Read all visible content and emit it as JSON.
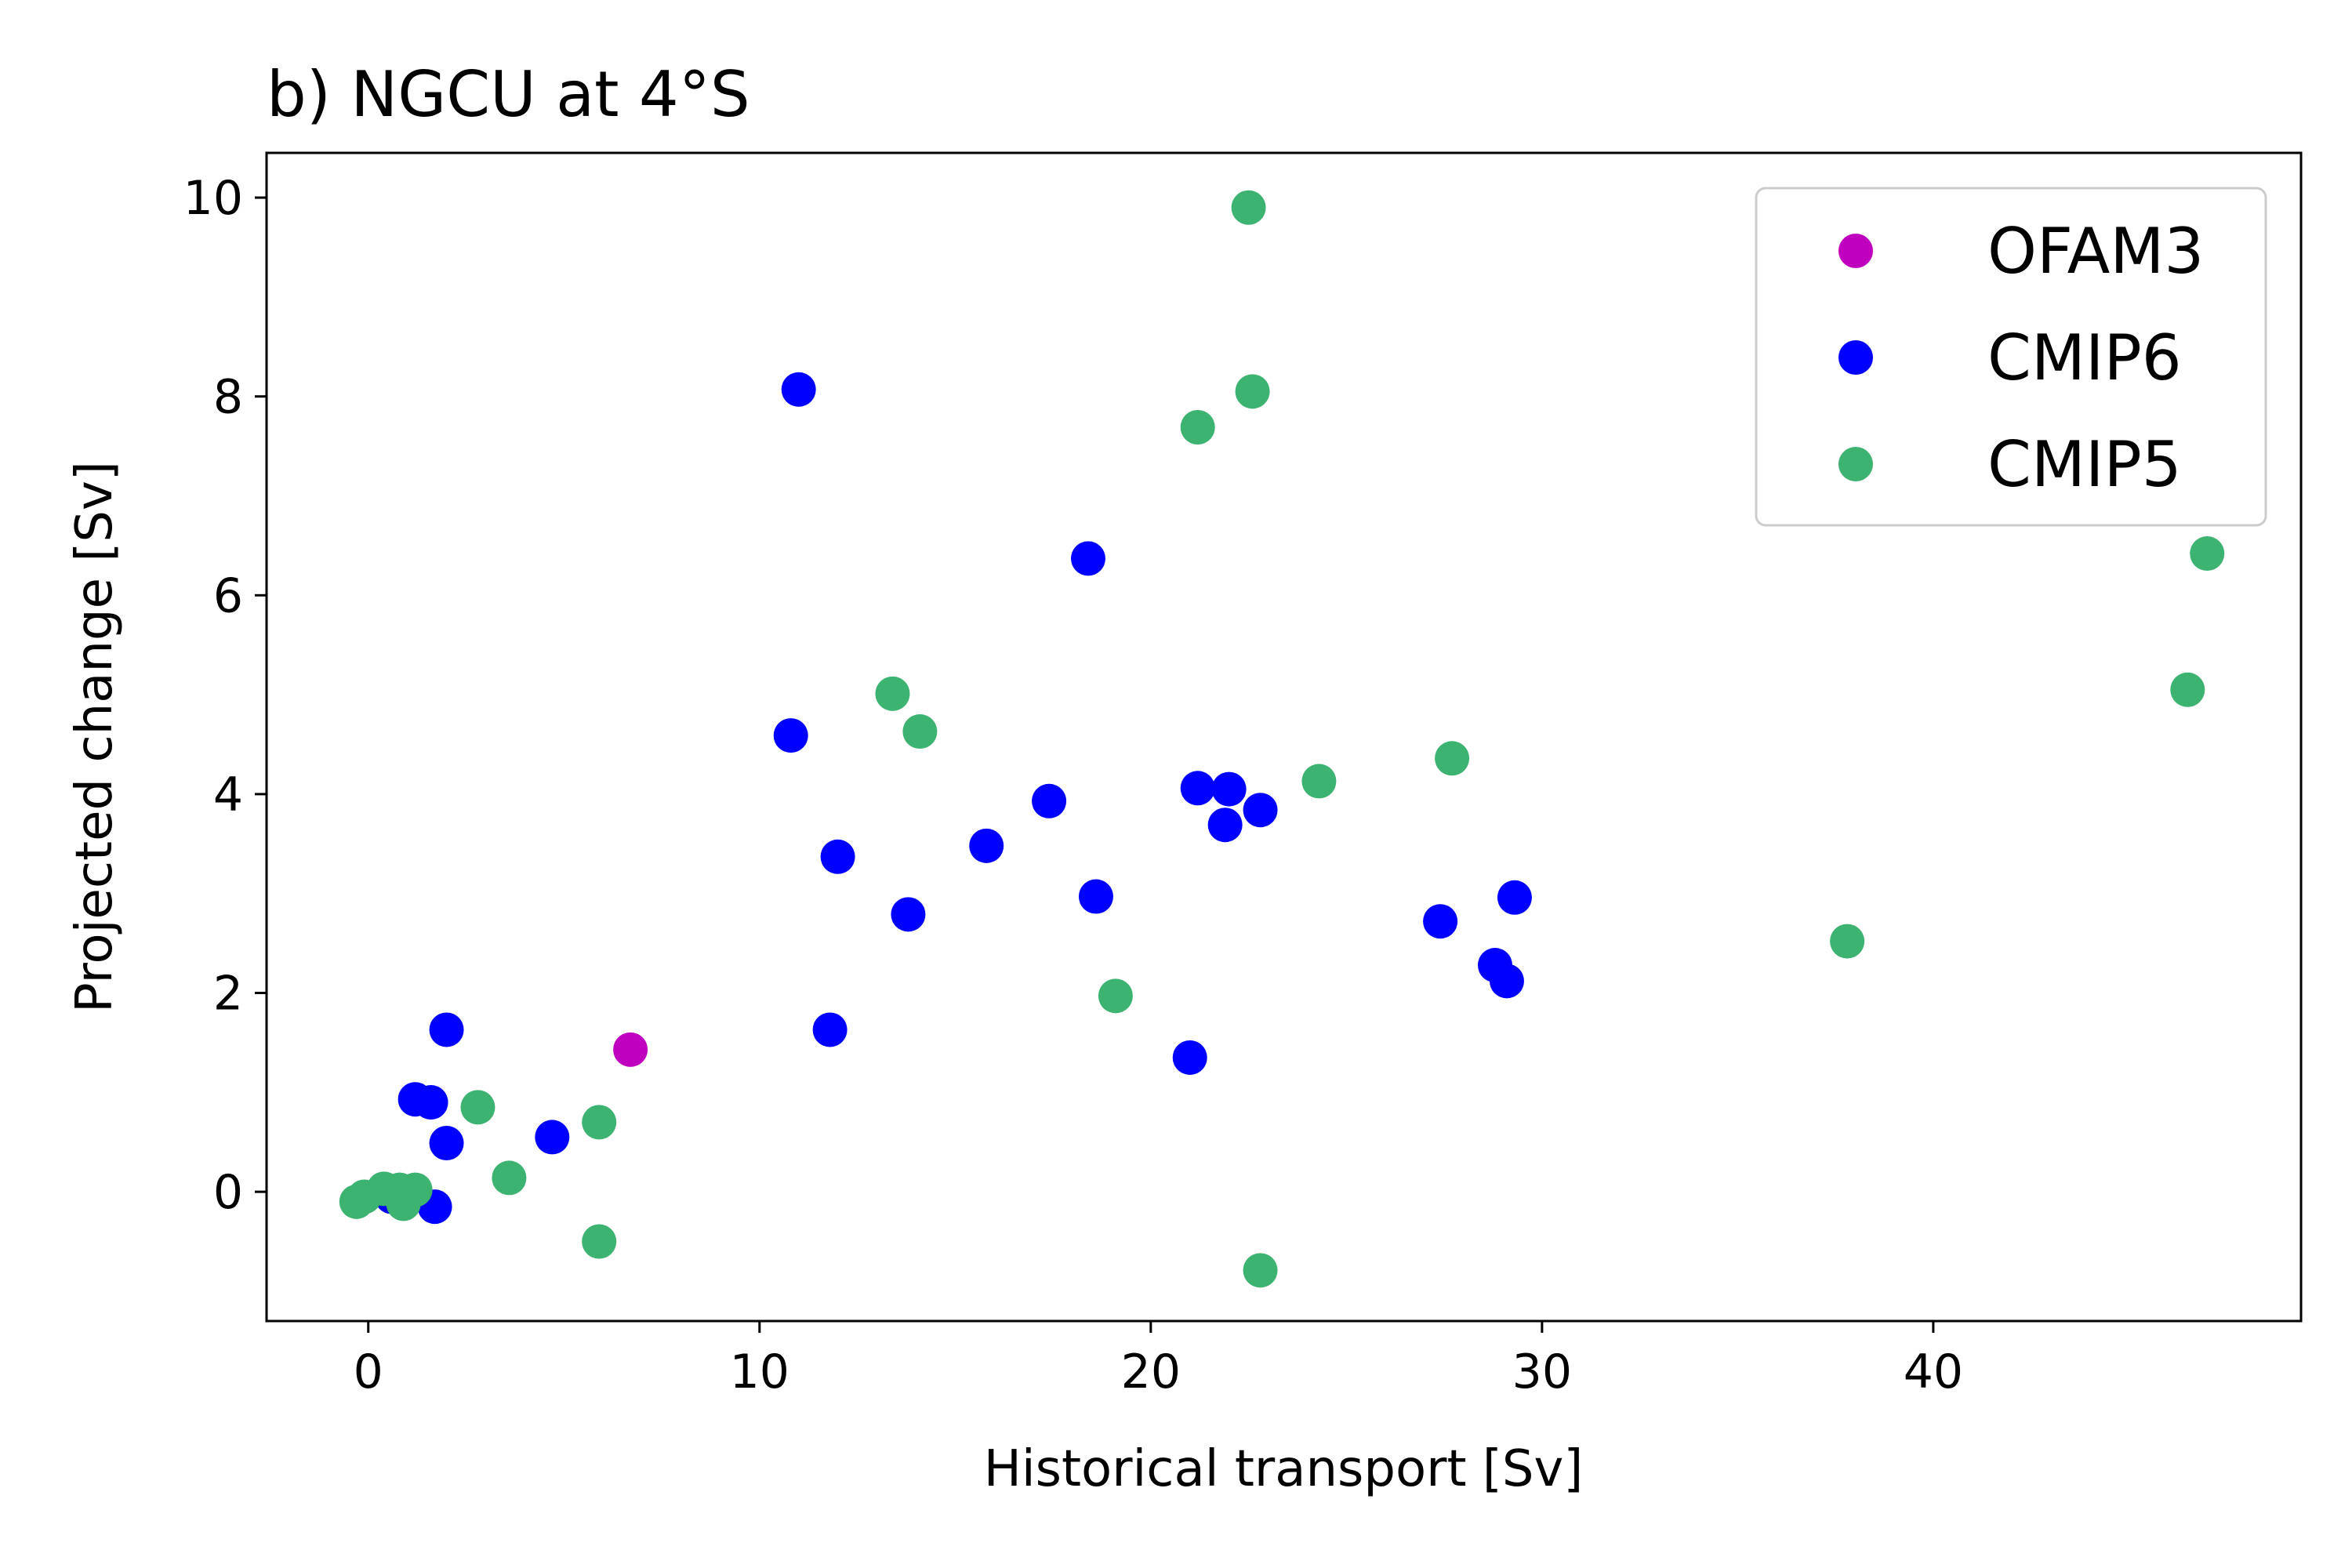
{
  "chart_data": {
    "type": "scatter",
    "title": "b) NGCU at 4°S",
    "xlabel": "Historical transport [Sv]",
    "ylabel": "Projected change [Sv]",
    "xlim": [
      -2.6,
      49.4
    ],
    "ylim": [
      -1.3,
      10.45
    ],
    "xticks": [
      0,
      10,
      20,
      30,
      40
    ],
    "yticks": [
      0,
      2,
      4,
      6,
      8,
      10
    ],
    "grid": false,
    "legend_position": "top-right",
    "series": [
      {
        "name": "OFAM3",
        "color": "#bf00bf",
        "points": [
          [
            6.7,
            1.43
          ]
        ]
      },
      {
        "name": "CMIP6",
        "color": "#0000ff",
        "points": [
          [
            11.0,
            8.07
          ],
          [
            18.4,
            6.37
          ],
          [
            10.8,
            4.59
          ],
          [
            12.0,
            3.37
          ],
          [
            15.8,
            3.48
          ],
          [
            17.4,
            3.93
          ],
          [
            13.8,
            2.79
          ],
          [
            18.6,
            2.97
          ],
          [
            11.8,
            1.63
          ],
          [
            21.0,
            1.35
          ],
          [
            21.2,
            4.06
          ],
          [
            22.0,
            4.05
          ],
          [
            21.9,
            3.69
          ],
          [
            22.8,
            3.84
          ],
          [
            27.4,
            2.72
          ],
          [
            29.3,
            2.96
          ],
          [
            28.8,
            2.28
          ],
          [
            29.1,
            2.12
          ],
          [
            2.0,
            1.63
          ],
          [
            1.2,
            0.93
          ],
          [
            1.6,
            0.9
          ],
          [
            2.0,
            0.49
          ],
          [
            4.7,
            0.55
          ],
          [
            1.7,
            -0.15
          ],
          [
            0.6,
            -0.05
          ]
        ]
      },
      {
        "name": "CMIP5",
        "color": "#3cb371",
        "points": [
          [
            22.5,
            9.9
          ],
          [
            22.6,
            8.05
          ],
          [
            21.2,
            7.69
          ],
          [
            47.0,
            6.42
          ],
          [
            46.5,
            5.05
          ],
          [
            13.4,
            5.01
          ],
          [
            14.1,
            4.63
          ],
          [
            24.3,
            4.13
          ],
          [
            27.7,
            4.36
          ],
          [
            37.8,
            2.52
          ],
          [
            19.1,
            1.97
          ],
          [
            2.8,
            0.85
          ],
          [
            5.9,
            0.7
          ],
          [
            3.6,
            0.14
          ],
          [
            5.9,
            -0.5
          ],
          [
            22.8,
            -0.79
          ],
          [
            -0.3,
            -0.1
          ],
          [
            -0.1,
            -0.05
          ],
          [
            0.4,
            0.03
          ],
          [
            0.8,
            0.02
          ],
          [
            1.2,
            0.02
          ],
          [
            0.9,
            -0.12
          ]
        ]
      }
    ]
  }
}
